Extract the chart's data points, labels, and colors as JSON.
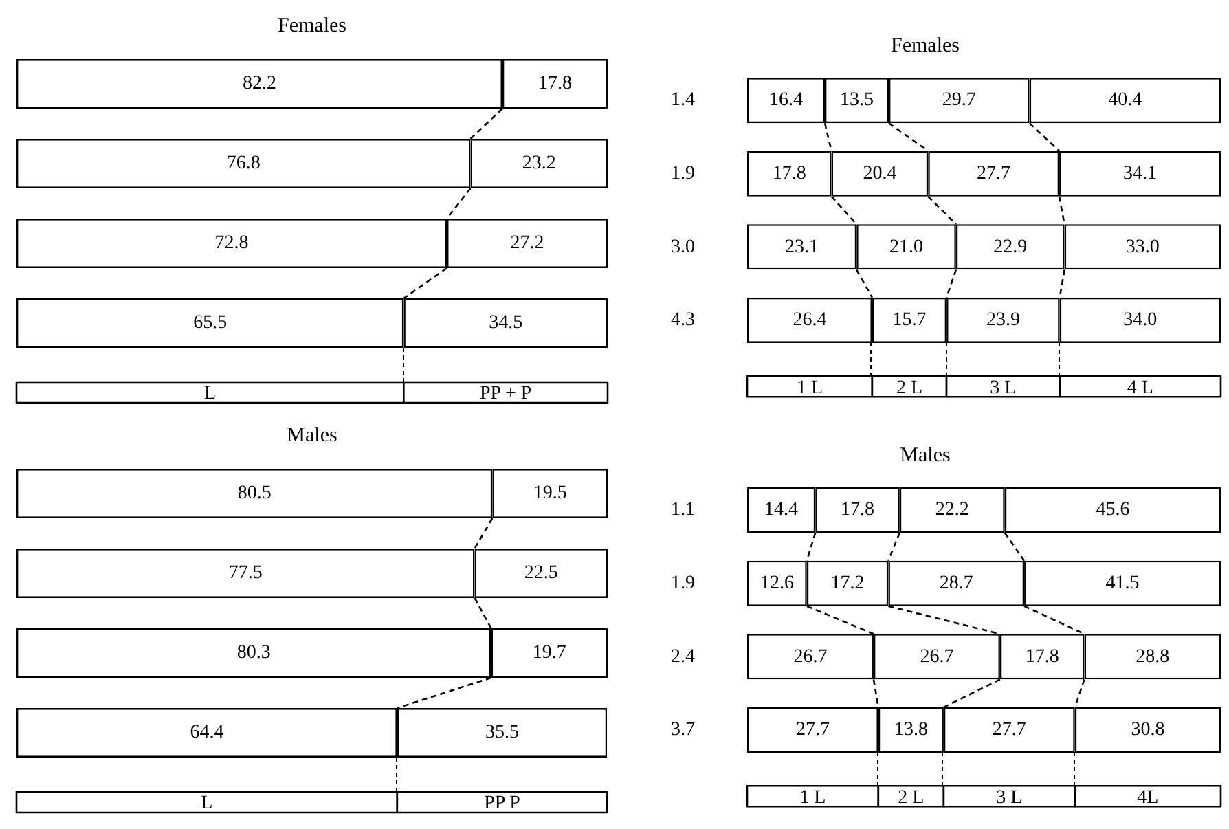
{
  "chart_data": [
    {
      "type": "bar",
      "orientation": "horizontal",
      "stacked": true,
      "title": "Females",
      "categories": [
        null,
        null,
        null,
        null
      ],
      "tick_labels": false,
      "legend": "bottom",
      "series": [
        {
          "name": "L",
          "color": "#ffffff",
          "values": [
            82.2,
            76.8,
            72.8,
            65.5
          ],
          "value_labels": [
            "82.2",
            "76.8",
            "72.8",
            "65.5"
          ]
        },
        {
          "name": "PP + P",
          "color": "#ffffff",
          "values": [
            17.8,
            23.2,
            27.2,
            34.5
          ],
          "value_labels": [
            "17.8",
            "23.2",
            "27.2",
            "34.5"
          ]
        }
      ]
    },
    {
      "type": "bar",
      "orientation": "horizontal",
      "stacked": true,
      "title": "Females",
      "categories": [
        "1.4",
        "1.9",
        "3.0",
        "4.3"
      ],
      "tick_labels": "y",
      "legend": "bottom",
      "series": [
        {
          "name": "1 L",
          "color": "#ffffff",
          "values": [
            16.4,
            17.8,
            23.1,
            26.4
          ],
          "value_labels": [
            "16.4",
            "17.8",
            "23.1",
            "26.4"
          ]
        },
        {
          "name": "2 L",
          "color": "#ffffff",
          "values": [
            13.5,
            20.4,
            21.0,
            15.7
          ],
          "value_labels": [
            "13.5",
            "20.4",
            "21.0",
            "15.7"
          ]
        },
        {
          "name": "3 L",
          "color": "#ffffff",
          "values": [
            29.7,
            27.7,
            22.9,
            23.9
          ],
          "value_labels": [
            "29.7",
            "27.7",
            "22.9",
            "23.9"
          ]
        },
        {
          "name": "4 L",
          "color": "#ffffff",
          "values": [
            40.4,
            34.1,
            33.0,
            34.0
          ],
          "value_labels": [
            "40.4",
            "34.1",
            "33.0",
            "34.0"
          ]
        }
      ]
    },
    {
      "type": "bar",
      "orientation": "horizontal",
      "stacked": true,
      "title": "Males",
      "categories": [
        null,
        null,
        null,
        null
      ],
      "tick_labels": false,
      "legend": "bottom",
      "series": [
        {
          "name": "L",
          "color": "#ffffff",
          "values": [
            80.5,
            77.5,
            80.3,
            64.4
          ],
          "value_labels": [
            "80.5",
            "77.5",
            "80.3",
            "64.4"
          ]
        },
        {
          "name": "PP P",
          "color": "#ffffff",
          "values": [
            19.5,
            22.5,
            19.7,
            35.5
          ],
          "value_labels": [
            "19.5",
            "22.5",
            "19.7",
            "35.5"
          ]
        }
      ]
    },
    {
      "type": "bar",
      "orientation": "horizontal",
      "stacked": true,
      "title": "Males",
      "categories": [
        "1.1",
        "1.9",
        "2.4",
        "3.7"
      ],
      "tick_labels": "y",
      "legend": "bottom",
      "series": [
        {
          "name": "1 L",
          "color": "#ffffff",
          "values": [
            14.4,
            12.6,
            26.7,
            27.7
          ],
          "value_labels": [
            "14.4",
            "12.6",
            "26.7",
            "27.7"
          ]
        },
        {
          "name": "2 L",
          "color": "#ffffff",
          "values": [
            17.8,
            17.2,
            26.7,
            13.8
          ],
          "value_labels": [
            "17.8",
            "17.2",
            "26.7",
            "13.8"
          ]
        },
        {
          "name": "3 L",
          "color": "#ffffff",
          "values": [
            22.2,
            28.7,
            17.8,
            27.7
          ],
          "value_labels": [
            "22.2",
            "28.7",
            "17.8",
            "27.7"
          ]
        },
        {
          "name": "4L",
          "color": "#ffffff",
          "values": [
            45.6,
            41.5,
            28.8,
            30.8
          ],
          "value_labels": [
            "45.6",
            "41.5",
            "28.8",
            "30.8"
          ]
        }
      ]
    }
  ]
}
